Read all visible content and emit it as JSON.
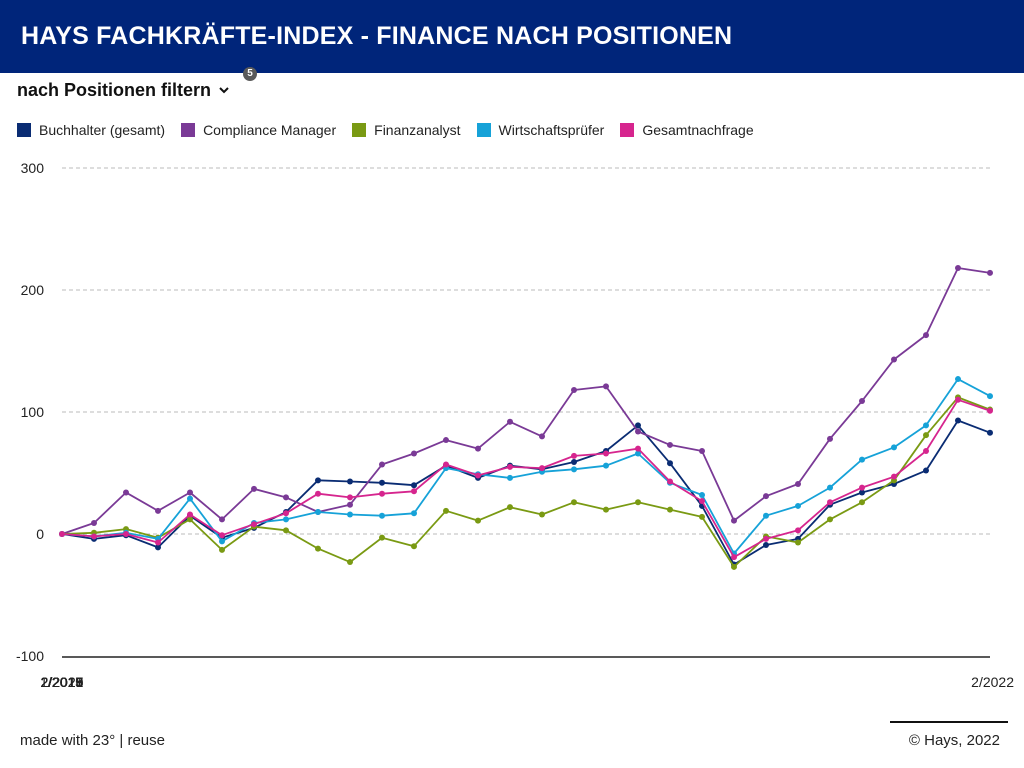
{
  "header": {
    "title": "HAYS FACHKRÄFTE-INDEX - FINANCE NACH POSITIONEN"
  },
  "filter": {
    "label": "nach Positionen filtern",
    "badge": "5"
  },
  "footer": {
    "made_with": "made with 23° | reuse",
    "copyright": "© Hays, 2022"
  },
  "colors": {
    "header_bg": "#00257a",
    "grid": "#bbbbbb",
    "axis": "#222222"
  },
  "chart_data": {
    "type": "line",
    "title": "",
    "xlabel": "",
    "ylabel": "",
    "ylim": [
      -100,
      300
    ],
    "yticks": [
      300,
      200,
      100,
      0,
      -100
    ],
    "grid": true,
    "legend_position": "top-left",
    "x": [
      "1/2015",
      "4/2015",
      "7/2015",
      "10/2015",
      "1/2016",
      "4/2016",
      "7/2016",
      "10/2016",
      "1/2017",
      "4/2017",
      "7/2017",
      "10/2017",
      "1/2018",
      "4/2018",
      "7/2018",
      "10/2018",
      "1/2019",
      "4/2019",
      "7/2019",
      "10/2019",
      "1/2020",
      "4/2020",
      "7/2020",
      "10/2020",
      "1/2021",
      "4/2021",
      "7/2021",
      "10/2021",
      "1/2022",
      "4/2022"
    ],
    "xtick_labels": [
      "1/2015",
      "2/2016",
      "2/2017",
      "2/2018",
      "2/2019",
      "2/2020",
      "2/2021",
      "2/2022"
    ],
    "series": [
      {
        "name": "Buchhalter (gesamt)",
        "color": "#0a2c73",
        "values": [
          0,
          -4,
          -1,
          -11,
          15,
          -3,
          5,
          18,
          44,
          43,
          42,
          40,
          56,
          46,
          56,
          53,
          59,
          68,
          89,
          58,
          23,
          -25,
          -9,
          -4,
          24,
          34,
          41,
          52,
          93,
          83
        ]
      },
      {
        "name": "Compliance Manager",
        "color": "#7a3a96",
        "values": [
          0,
          9,
          34,
          19,
          34,
          12,
          37,
          30,
          18,
          24,
          57,
          66,
          77,
          70,
          92,
          80,
          118,
          121,
          84,
          73,
          68,
          11,
          31,
          41,
          78,
          109,
          143,
          163,
          218,
          214
        ]
      },
      {
        "name": "Finanzanalyst",
        "color": "#7a9a13",
        "values": [
          0,
          1,
          4,
          -3,
          12,
          -13,
          6,
          3,
          -12,
          -23,
          -3,
          -10,
          19,
          11,
          22,
          16,
          26,
          20,
          26,
          20,
          14,
          -27,
          -2,
          -7,
          12,
          26,
          44,
          81,
          112,
          102
        ]
      },
      {
        "name": "Wirtschaftsprüfer",
        "color": "#16a2d8",
        "values": [
          0,
          -2,
          1,
          -4,
          29,
          -6,
          9,
          12,
          18,
          16,
          15,
          17,
          54,
          49,
          46,
          51,
          53,
          56,
          66,
          42,
          32,
          -16,
          15,
          23,
          38,
          61,
          71,
          89,
          127,
          113
        ]
      },
      {
        "name": "Gesamtnachfrage",
        "color": "#d6258e",
        "values": [
          0,
          -2,
          0,
          -7,
          16,
          -1,
          8,
          17,
          33,
          30,
          33,
          35,
          57,
          48,
          55,
          54,
          64,
          66,
          70,
          43,
          27,
          -19,
          -4,
          3,
          26,
          38,
          47,
          68,
          110,
          101
        ]
      }
    ]
  }
}
